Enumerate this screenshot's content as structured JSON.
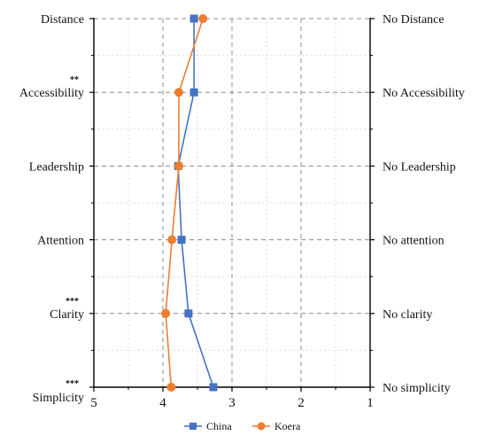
{
  "chart_data": {
    "type": "line",
    "orientation": "vertical-profile",
    "left_labels": [
      "Distance",
      "Accessibility",
      "Leadership",
      "Attention",
      "Clarity",
      "Simplicity"
    ],
    "right_labels": [
      "No Distance",
      "No Accessibility",
      "No Leadership",
      "No attention",
      "No clarity",
      "No simplicity"
    ],
    "significance": [
      "",
      "**",
      "",
      "",
      "***",
      "***"
    ],
    "x_ticks": [
      "5",
      "4",
      "3",
      "2",
      "1"
    ],
    "xlim": [
      5,
      1
    ],
    "x_reversed": true,
    "grid": true,
    "legend_position": "bottom",
    "series": [
      {
        "name": "China",
        "marker": "square",
        "color": "#4472C4",
        "values": [
          3.55,
          3.55,
          3.78,
          3.73,
          3.63,
          3.27
        ]
      },
      {
        "name": "Koera",
        "marker": "circle",
        "color": "#ED7D31",
        "values": [
          3.42,
          3.77,
          3.77,
          3.87,
          3.96,
          3.88
        ]
      }
    ]
  }
}
